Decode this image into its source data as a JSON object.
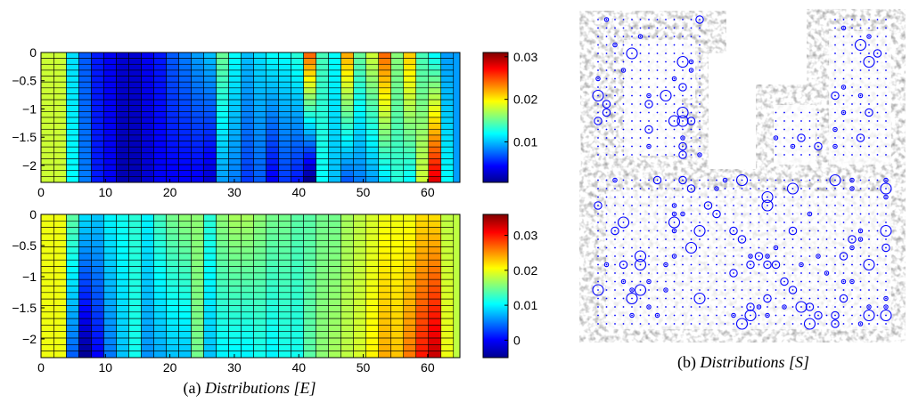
{
  "captions": {
    "a_prefix": "(a)",
    "a_text": "Distributions [E]",
    "b_prefix": "(b)",
    "b_text": "Distributions [S]"
  },
  "colors": {
    "grid_line": "#000000",
    "circle": "#0000ff",
    "map_background": "#ffffff",
    "map_texture": "#8a8a8a"
  },
  "chart_data": [
    {
      "type": "heatmap",
      "title": "",
      "xlabel": "",
      "ylabel": "",
      "xlim": [
        0,
        65
      ],
      "ylim": [
        -2.3,
        0
      ],
      "x_ticks": [
        "0",
        "10",
        "20",
        "30",
        "40",
        "50",
        "60"
      ],
      "y_ticks": [
        "0",
        "-0.5",
        "-1",
        "-1.5",
        "-2"
      ],
      "colorbar": {
        "min": 0.0005,
        "max": 0.031,
        "ticks": [
          "0.03",
          "0.02",
          "0.01"
        ],
        "tick_values": [
          0.03,
          0.02,
          0.01
        ],
        "colormap": "jet"
      },
      "columns": 32,
      "rows": 22,
      "column_top_values": [
        0.018,
        0.011,
        0.007,
        0.005,
        0.004,
        0.003,
        0.003,
        0.004,
        0.005,
        0.007,
        0.008,
        0.009,
        0.01,
        0.015,
        0.012,
        0.01,
        0.011,
        0.012,
        0.012,
        0.013,
        0.024,
        0.014,
        0.012,
        0.022,
        0.015,
        0.018,
        0.024,
        0.016,
        0.021,
        0.014,
        0.012,
        0.009
      ],
      "column_bottom_values": [
        0.018,
        0.012,
        0.008,
        0.005,
        0.004,
        0.002,
        0.002,
        0.003,
        0.004,
        0.004,
        0.004,
        0.004,
        0.003,
        0.009,
        0.008,
        0.006,
        0.007,
        0.004,
        0.006,
        0.005,
        0.001,
        0.012,
        0.01,
        0.007,
        0.008,
        0.009,
        0.011,
        0.013,
        0.012,
        0.018,
        0.028,
        0.012
      ]
    },
    {
      "type": "heatmap",
      "title": "",
      "xlabel": "",
      "ylabel": "",
      "xlim": [
        0,
        65
      ],
      "ylim": [
        -2.3,
        0
      ],
      "x_ticks": [
        "0",
        "10",
        "20",
        "30",
        "40",
        "50",
        "60"
      ],
      "y_ticks": [
        "0",
        "-0.5",
        "-1",
        "-1.5",
        "-2"
      ],
      "colorbar": {
        "min": -0.005,
        "max": 0.036,
        "ticks": [
          "0.03",
          "0.02",
          "0.01",
          "0"
        ],
        "tick_values": [
          0.03,
          0.02,
          0.01,
          0
        ],
        "colormap": "jet"
      },
      "columns": 32,
      "rows": 22,
      "column_top_values": [
        0.02,
        0.014,
        0.009,
        0.008,
        0.01,
        0.011,
        0.012,
        0.01,
        0.013,
        0.015,
        0.016,
        0.016,
        0.012,
        0.016,
        0.017,
        0.017,
        0.016,
        0.015,
        0.015,
        0.014,
        0.014,
        0.015,
        0.015,
        0.017,
        0.018,
        0.019,
        0.02,
        0.02,
        0.02,
        0.022,
        0.022,
        0.018
      ],
      "column_bottom_values": [
        0.02,
        0.004,
        -0.004,
        0.0,
        0.005,
        0.008,
        0.011,
        0.006,
        0.007,
        0.008,
        0.008,
        0.015,
        0.008,
        0.01,
        0.01,
        0.01,
        0.011,
        0.01,
        0.011,
        0.011,
        0.014,
        0.016,
        0.017,
        0.018,
        0.019,
        0.021,
        0.024,
        0.023,
        0.026,
        0.03,
        0.033,
        0.02
      ]
    }
  ]
}
